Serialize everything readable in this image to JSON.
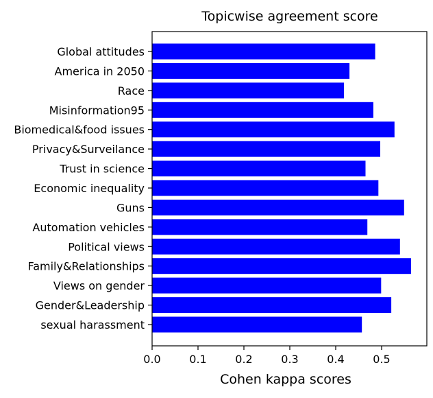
{
  "chart_data": {
    "type": "bar",
    "orientation": "horizontal",
    "title": "Topicwise agreement score",
    "xlabel": "Cohen kappa scores",
    "ylabel": "",
    "xlim": [
      0,
      0.6
    ],
    "x_ticks": [
      "0.0",
      "0.1",
      "0.2",
      "0.3",
      "0.4",
      "0.5"
    ],
    "grid": false,
    "bar_color": "#0000ff",
    "categories": [
      "Global attitudes",
      "America in 2050",
      "Race",
      "Misinformation95",
      "Biomedical&food issues",
      "Privacy&Surveilance",
      "Trust in science",
      "Economic inequality",
      "Guns",
      "Automation vehicles",
      "Political views",
      "Family&Relationships",
      "Views on gender",
      "Gender&Leadership",
      "sexual harassment"
    ],
    "values": [
      0.486,
      0.43,
      0.418,
      0.482,
      0.528,
      0.497,
      0.465,
      0.493,
      0.549,
      0.469,
      0.54,
      0.564,
      0.499,
      0.521,
      0.457
    ]
  }
}
